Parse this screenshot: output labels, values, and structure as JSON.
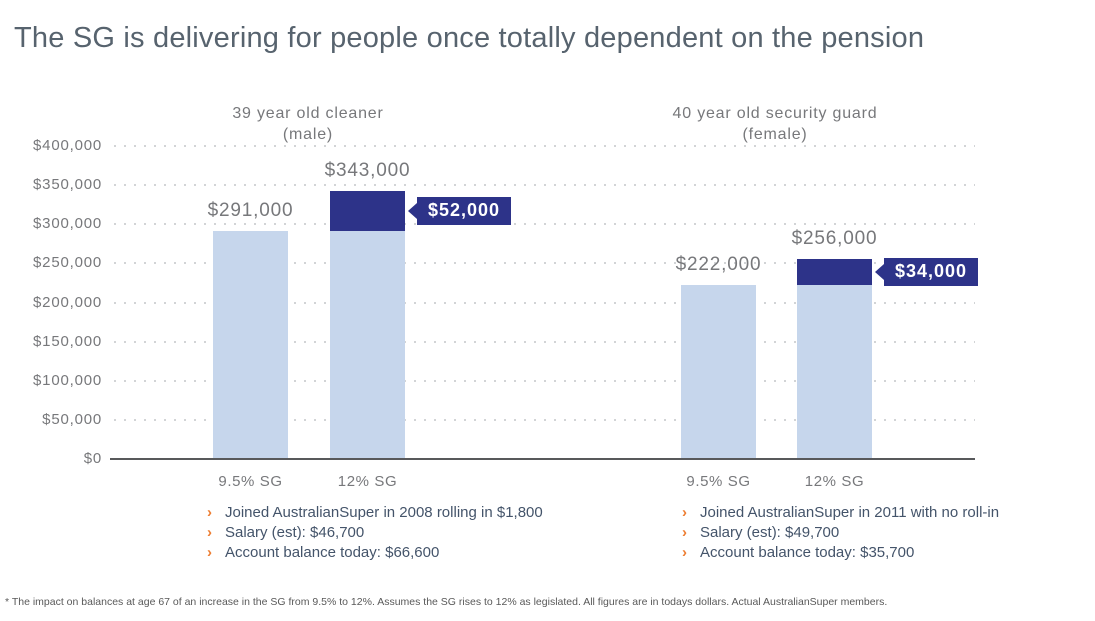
{
  "title": "The SG is delivering for people once totally dependent on the pension",
  "footnote": "* The impact on balances at age 67 of an increase in the SG from 9.5% to 12%. Assumes the SG rises to 12% as legislated. All figures are in todays dollars. Actual AustralianSuper members.",
  "colors": {
    "base_bar": "#c6d6ec",
    "increase_bar": "#2d3389",
    "callout_bg": "#2d3389",
    "callout_text": "#ffffff",
    "title_text": "#57636e",
    "chart_label_gray": "#77787b",
    "note_text": "#44546a",
    "note_chevron": "#ed7d31",
    "gridline": "#d2d4d6",
    "axis_line": "#58595b",
    "footnote_text": "#595959"
  },
  "chart_data": {
    "type": "bar",
    "title": "The SG is delivering for people once totally dependent on the pension",
    "xlabel": "",
    "ylabel": "",
    "ylim": [
      0,
      400000
    ],
    "ytick_step": 50000,
    "yticks": [
      "$400,000",
      "$350,000",
      "$300,000",
      "$250,000",
      "$200,000",
      "$150,000",
      "$100,000",
      "$50,000",
      "$0"
    ],
    "grid": "horizontal-dotted",
    "legend_position": "none",
    "segment_colors": {
      "base": "#c6d6ec",
      "increase": "#2d3389"
    },
    "groups": [
      {
        "header": "39 year old cleaner",
        "subheader": "(male)",
        "bars": [
          {
            "category": "9.5% SG",
            "total": 291000,
            "total_label": "$291,000",
            "segments": [
              {
                "name": "base",
                "value": 291000
              }
            ]
          },
          {
            "category": "12% SG",
            "total": 343000,
            "total_label": "$343,000",
            "segments": [
              {
                "name": "base",
                "value": 291000
              },
              {
                "name": "increase",
                "value": 52000
              }
            ],
            "callout_label": "$52,000"
          }
        ],
        "notes": [
          "Joined AustralianSuper in 2008 rolling in $1,800",
          "Salary (est): $46,700",
          "Account balance today: $66,600"
        ]
      },
      {
        "header": "40 year old security guard",
        "subheader": "(female)",
        "bars": [
          {
            "category": "9.5% SG",
            "total": 222000,
            "total_label": "$222,000",
            "segments": [
              {
                "name": "base",
                "value": 222000
              }
            ]
          },
          {
            "category": "12% SG",
            "total": 256000,
            "total_label": "$256,000",
            "segments": [
              {
                "name": "base",
                "value": 222000
              },
              {
                "name": "increase",
                "value": 34000
              }
            ],
            "callout_label": "$34,000"
          }
        ],
        "notes": [
          "Joined AustralianSuper in 2011 with no roll-in",
          "Salary (est): $49,700",
          "Account balance today: $35,700"
        ]
      }
    ]
  }
}
